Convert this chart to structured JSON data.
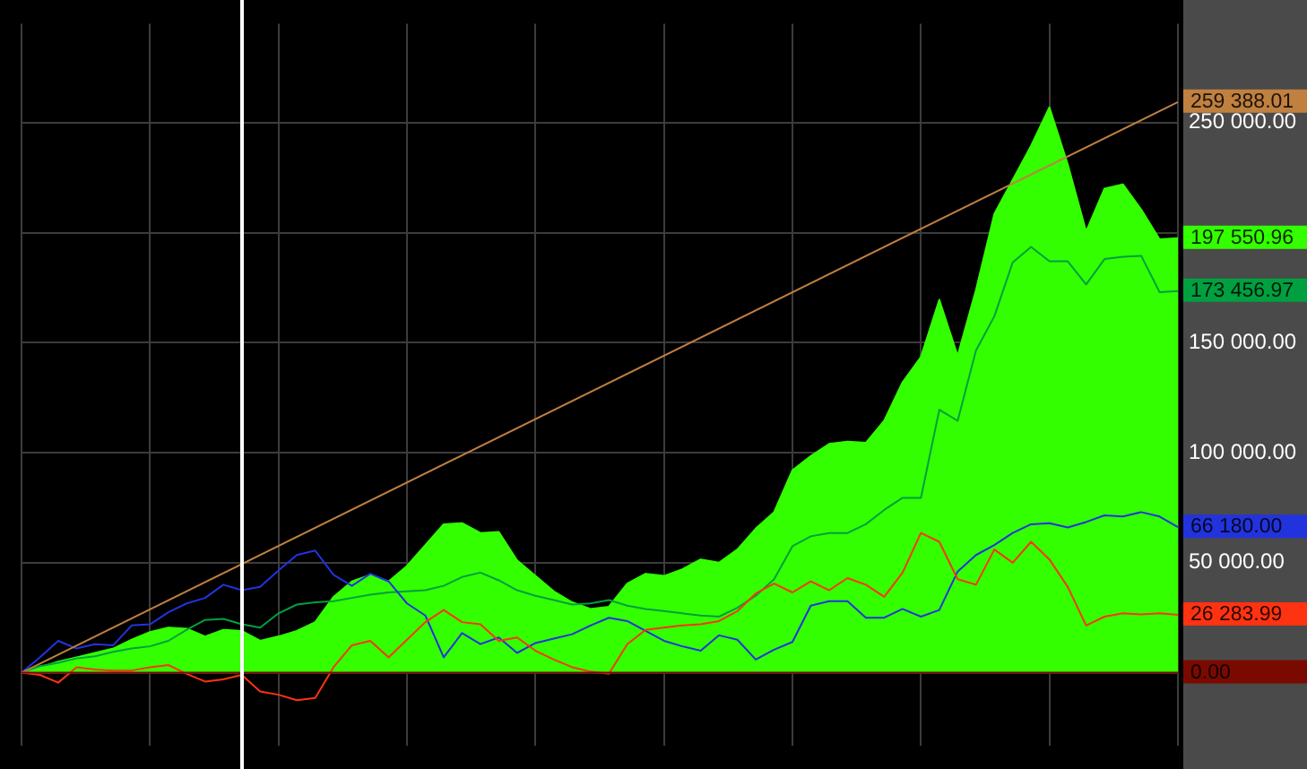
{
  "chart_data": {
    "type": "line",
    "tick_labels": "y",
    "grid": true,
    "legend": false,
    "marker": "none",
    "categories": [
      null,
      null,
      null,
      null,
      null,
      null,
      null,
      null,
      null,
      null,
      null,
      null,
      null,
      null,
      null,
      null,
      null,
      null,
      null,
      null,
      null,
      null,
      null,
      null,
      null,
      null,
      null,
      null,
      null,
      null,
      null,
      null,
      null,
      null,
      null,
      null,
      null,
      null,
      null,
      null,
      null,
      null,
      null,
      null,
      null,
      null,
      null,
      null,
      null,
      null,
      null,
      null,
      null,
      null,
      null,
      null,
      null,
      null,
      null,
      null,
      null,
      null,
      null,
      null
    ],
    "ylim": [
      -33000,
      295000
    ],
    "yticks": [
      {
        "value": 0,
        "label": null
      },
      {
        "value": 50000,
        "label": "50 000.00"
      },
      {
        "value": 100000,
        "label": "100 000.00"
      },
      {
        "value": 150000,
        "label": "150 000.00"
      },
      {
        "value": 200000,
        "label": null
      },
      {
        "value": 250000,
        "label": "250 000.00"
      }
    ],
    "ref_lines": [
      {
        "axis": "y",
        "value": 0,
        "label": "0.00",
        "color": "#7a0a00"
      }
    ],
    "series": [
      {
        "type": "area",
        "color": "#33ff00",
        "values": [
          0,
          2500,
          5000,
          7000,
          9000,
          11000,
          15000,
          18500,
          20500,
          20000,
          16500,
          19500,
          19000,
          14500,
          16500,
          19000,
          23000,
          34500,
          41500,
          44500,
          41500,
          48500,
          58000,
          67500,
          68000,
          63500,
          64000,
          51000,
          44000,
          37000,
          32000,
          29000,
          30000,
          40500,
          45000,
          44000,
          47000,
          51500,
          50000,
          56000,
          65500,
          73000,
          92000,
          98500,
          104000,
          105000,
          104500,
          114500,
          132000,
          143500,
          169500,
          144000,
          174000,
          208500,
          224000,
          239500,
          257000,
          231000,
          200500,
          220000,
          222000,
          210500,
          197000,
          197550.96
        ],
        "value_labels": [
          null,
          null,
          null,
          null,
          null,
          null,
          null,
          null,
          null,
          null,
          null,
          null,
          null,
          null,
          null,
          null,
          null,
          null,
          null,
          null,
          null,
          null,
          null,
          null,
          null,
          null,
          null,
          null,
          null,
          null,
          null,
          null,
          null,
          null,
          null,
          null,
          null,
          null,
          null,
          null,
          null,
          null,
          null,
          null,
          null,
          null,
          null,
          null,
          null,
          null,
          null,
          null,
          null,
          null,
          null,
          null,
          null,
          null,
          null,
          null,
          null,
          null,
          null,
          "197 550.96"
        ]
      },
      {
        "color": "#00a040",
        "values": [
          0,
          3000,
          4500,
          6500,
          7500,
          9500,
          11000,
          12000,
          14500,
          19500,
          24000,
          24500,
          22000,
          20500,
          27000,
          31000,
          32000,
          32500,
          34000,
          35500,
          36500,
          37000,
          37500,
          39500,
          43500,
          45500,
          42000,
          37500,
          35000,
          33000,
          31000,
          31500,
          33000,
          30500,
          29000,
          28000,
          27000,
          26000,
          25500,
          29500,
          35000,
          42500,
          57500,
          62000,
          63500,
          63500,
          67500,
          74000,
          79500,
          79500,
          119500,
          114500,
          146500,
          162000,
          186500,
          193500,
          187000,
          187000,
          176500,
          188000,
          189000,
          189500,
          173000,
          173456.97
        ],
        "value_labels": [
          null,
          null,
          null,
          null,
          null,
          null,
          null,
          null,
          null,
          null,
          null,
          null,
          null,
          null,
          null,
          null,
          null,
          null,
          null,
          null,
          null,
          null,
          null,
          null,
          null,
          null,
          null,
          null,
          null,
          null,
          null,
          null,
          null,
          null,
          null,
          null,
          null,
          null,
          null,
          null,
          null,
          null,
          null,
          null,
          null,
          null,
          null,
          null,
          null,
          null,
          null,
          null,
          null,
          null,
          null,
          null,
          null,
          null,
          null,
          null,
          null,
          null,
          null,
          "173 456.97"
        ]
      },
      {
        "color": "#2233dd",
        "values": [
          0,
          7000,
          14500,
          11000,
          13000,
          12500,
          21500,
          22000,
          27500,
          31500,
          34000,
          40000,
          37500,
          39000,
          46500,
          53500,
          55500,
          44500,
          39500,
          45000,
          41500,
          31500,
          26000,
          7000,
          18000,
          13000,
          16000,
          9000,
          13500,
          15500,
          17500,
          21500,
          25000,
          23500,
          19000,
          14500,
          12000,
          10000,
          17000,
          15000,
          6000,
          10500,
          14000,
          30500,
          32500,
          32500,
          25000,
          25000,
          29000,
          25500,
          28500,
          46000,
          53500,
          58000,
          63500,
          67500,
          68000,
          66000,
          68500,
          71500,
          71000,
          73000,
          71000,
          66180
        ],
        "value_labels": [
          null,
          null,
          null,
          null,
          null,
          null,
          null,
          null,
          null,
          null,
          null,
          null,
          null,
          null,
          null,
          null,
          null,
          null,
          null,
          null,
          null,
          null,
          null,
          null,
          null,
          null,
          null,
          null,
          null,
          null,
          null,
          null,
          null,
          null,
          null,
          null,
          null,
          null,
          null,
          null,
          null,
          null,
          null,
          null,
          null,
          null,
          null,
          null,
          null,
          null,
          null,
          null,
          null,
          null,
          null,
          null,
          null,
          null,
          null,
          null,
          null,
          null,
          null,
          "66 180.00"
        ]
      },
      {
        "color": "#ff3311",
        "values": [
          0,
          -1000,
          -4500,
          2500,
          1500,
          1000,
          1000,
          2500,
          3500,
          -500,
          -4000,
          -3000,
          -1000,
          -8500,
          -10000,
          -12500,
          -11500,
          2500,
          12500,
          14500,
          7000,
          15000,
          23000,
          28500,
          23000,
          22000,
          14500,
          16000,
          10000,
          6000,
          2500,
          500,
          -500,
          13000,
          19500,
          20500,
          21500,
          22000,
          23500,
          28000,
          36000,
          40500,
          36500,
          41500,
          37500,
          43000,
          40000,
          34500,
          45500,
          63500,
          59500,
          42500,
          40000,
          56000,
          50000,
          59500,
          51500,
          39000,
          21500,
          25500,
          27000,
          26500,
          27000,
          26283.99
        ],
        "value_labels": [
          null,
          null,
          null,
          null,
          null,
          null,
          null,
          null,
          null,
          null,
          null,
          null,
          null,
          null,
          null,
          null,
          null,
          null,
          null,
          null,
          null,
          null,
          null,
          null,
          null,
          null,
          null,
          null,
          null,
          null,
          null,
          null,
          null,
          null,
          null,
          null,
          null,
          null,
          null,
          null,
          null,
          null,
          null,
          null,
          null,
          null,
          null,
          null,
          null,
          null,
          null,
          null,
          null,
          null,
          null,
          null,
          null,
          null,
          null,
          null,
          null,
          null,
          null,
          "26 283.99"
        ]
      },
      {
        "color": "#c08040",
        "values": [
          0,
          null,
          null,
          null,
          null,
          null,
          null,
          null,
          null,
          null,
          null,
          null,
          null,
          null,
          null,
          null,
          null,
          null,
          null,
          null,
          null,
          null,
          null,
          null,
          null,
          null,
          null,
          null,
          null,
          null,
          null,
          null,
          null,
          null,
          null,
          null,
          null,
          null,
          null,
          null,
          null,
          null,
          null,
          null,
          null,
          null,
          null,
          null,
          null,
          null,
          null,
          null,
          null,
          null,
          null,
          null,
          null,
          null,
          null,
          null,
          null,
          null,
          null,
          259388.01
        ],
        "value_labels": [
          null,
          null,
          null,
          null,
          null,
          null,
          null,
          null,
          null,
          null,
          null,
          null,
          null,
          null,
          null,
          null,
          null,
          null,
          null,
          null,
          null,
          null,
          null,
          null,
          null,
          null,
          null,
          null,
          null,
          null,
          null,
          null,
          null,
          null,
          null,
          null,
          null,
          null,
          null,
          null,
          null,
          null,
          null,
          null,
          null,
          null,
          null,
          null,
          null,
          null,
          null,
          null,
          null,
          null,
          null,
          null,
          null,
          null,
          null,
          null,
          null,
          null,
          null,
          "259 388.01"
        ]
      }
    ]
  }
}
